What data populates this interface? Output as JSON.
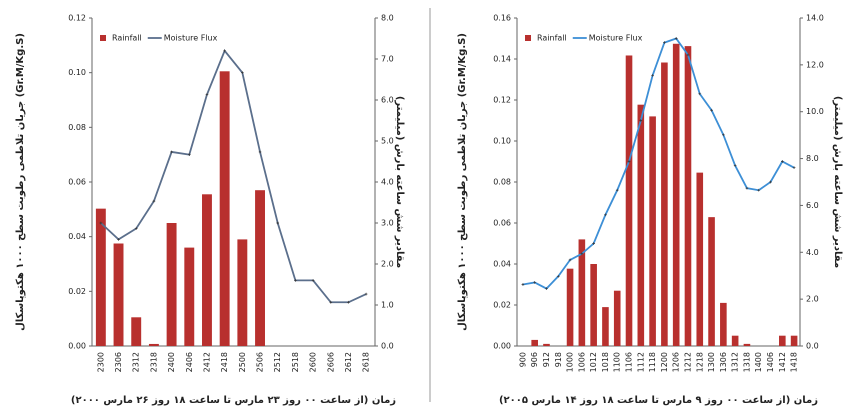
{
  "chart_data": [
    {
      "type": "bar_line",
      "x_label": "زمان (از ساعت ۰۰ روز ۲۳ مارس تا ساعت ۱۸ روز ۲۶ مارس ۲۰۰۰)",
      "y_label": "جریان تلاطمی رطوبت سطح ۱۰۰۰ هکتوپاسکال (Gr.M/Kg.S)",
      "y2_label": "مقادیر شش ساعته بارش (میلیمتر)",
      "categories": [
        "2300",
        "2306",
        "2312",
        "2318",
        "2400",
        "2406",
        "2412",
        "2418",
        "2500",
        "2506",
        "2512",
        "2518",
        "2600",
        "2606",
        "2612",
        "2618"
      ],
      "series": [
        {
          "name": "Rainfall",
          "type": "bar",
          "axis": "y2",
          "color": "#b8302e",
          "values": [
            3.35,
            2.5,
            0.7,
            0.05,
            3.0,
            2.4,
            3.7,
            6.7,
            2.6,
            3.8,
            0,
            0,
            0,
            0,
            0,
            0
          ]
        },
        {
          "name": "Moisture Flux",
          "type": "line",
          "color": "#5b6f8c",
          "values": [
            0.045,
            0.039,
            0.043,
            0.053,
            0.071,
            0.07,
            0.092,
            0.108,
            0.1,
            0.071,
            0.045,
            0.024,
            0.024,
            0.016,
            0.016,
            0.019
          ]
        }
      ],
      "ylim": [
        0,
        0.12
      ],
      "yticks": [
        {
          "value": 0,
          "label": "0.00"
        },
        {
          "value": 0.02,
          "label": "0.02"
        },
        {
          "value": 0.04,
          "label": "0.04"
        },
        {
          "value": 0.06,
          "label": "0.06"
        },
        {
          "value": 0.08,
          "label": "0.08"
        },
        {
          "value": 0.1,
          "label": "0.10"
        },
        {
          "value": 0.12,
          "label": "0.12"
        }
      ],
      "y2lim": [
        0,
        8
      ],
      "y2ticks": [
        {
          "value": 0,
          "label": "0.0"
        },
        {
          "value": 1,
          "label": "1.0"
        },
        {
          "value": 2,
          "label": "2.0"
        },
        {
          "value": 3,
          "label": "3.0"
        },
        {
          "value": 4,
          "label": "4.0"
        },
        {
          "value": 5,
          "label": "5.0"
        },
        {
          "value": 6,
          "label": "6.0"
        },
        {
          "value": 7,
          "label": "7.0"
        },
        {
          "value": 8,
          "label": "8.0"
        }
      ],
      "legend": "upper left"
    },
    {
      "type": "bar_line",
      "x_label": "زمان (از ساعت ۰۰ روز ۹ مارس تا ساعت ۱۸ روز ۱۴ مارس ۲۰۰۵)",
      "y_label": "جریان تلاطمی رطوبت سطح ۱۰۰۰ هکتوپاسکال (Gr.M/Kg.S)",
      "y2_label": "مقادیر شش ساعته بارش (میلیمتر)",
      "categories": [
        "900",
        "906",
        "912",
        "918",
        "1000",
        "1006",
        "1012",
        "1018",
        "1100",
        "1106",
        "1112",
        "1118",
        "1200",
        "1206",
        "1212",
        "1218",
        "1300",
        "1306",
        "1312",
        "1318",
        "1400",
        "1406",
        "1412",
        "1418"
      ],
      "series": [
        {
          "name": "Rainfall",
          "type": "bar",
          "axis": "y2",
          "color": "#b8302e",
          "values": [
            0,
            0.26,
            0.09,
            0,
            3.3,
            4.55,
            3.5,
            1.66,
            2.36,
            12.4,
            10.3,
            9.8,
            12.1,
            12.9,
            12.8,
            7.4,
            5.5,
            1.84,
            0.44,
            0.09,
            0,
            0,
            0.44,
            0.44
          ]
        },
        {
          "name": "Moisture Flux",
          "type": "line",
          "color": "#3d8fd6",
          "values": [
            0.03,
            0.031,
            0.028,
            0.034,
            0.042,
            0.045,
            0.05,
            0.064,
            0.076,
            0.09,
            0.11,
            0.132,
            0.148,
            0.15,
            0.142,
            0.123,
            0.115,
            0.103,
            0.088,
            0.077,
            0.076,
            0.08,
            0.09,
            0.087
          ]
        }
      ],
      "ylim": [
        0,
        0.16
      ],
      "yticks": [
        {
          "value": 0,
          "label": "0.00"
        },
        {
          "value": 0.02,
          "label": "0.02"
        },
        {
          "value": 0.04,
          "label": "0.04"
        },
        {
          "value": 0.06,
          "label": "0.06"
        },
        {
          "value": 0.08,
          "label": "0.08"
        },
        {
          "value": 0.1,
          "label": "0.10"
        },
        {
          "value": 0.12,
          "label": "0.12"
        },
        {
          "value": 0.14,
          "label": "0.14"
        },
        {
          "value": 0.16,
          "label": "0.16"
        }
      ],
      "y2lim": [
        0,
        14
      ],
      "y2ticks": [
        {
          "value": 0,
          "label": "0.0"
        },
        {
          "value": 2,
          "label": "2.0"
        },
        {
          "value": 4,
          "label": "4.0"
        },
        {
          "value": 6,
          "label": "6.0"
        },
        {
          "value": 8,
          "label": "8.0"
        },
        {
          "value": 10,
          "label": "10.0"
        },
        {
          "value": 12,
          "label": "12.0"
        },
        {
          "value": 14,
          "label": "14.0"
        }
      ],
      "legend": "upper left"
    }
  ]
}
